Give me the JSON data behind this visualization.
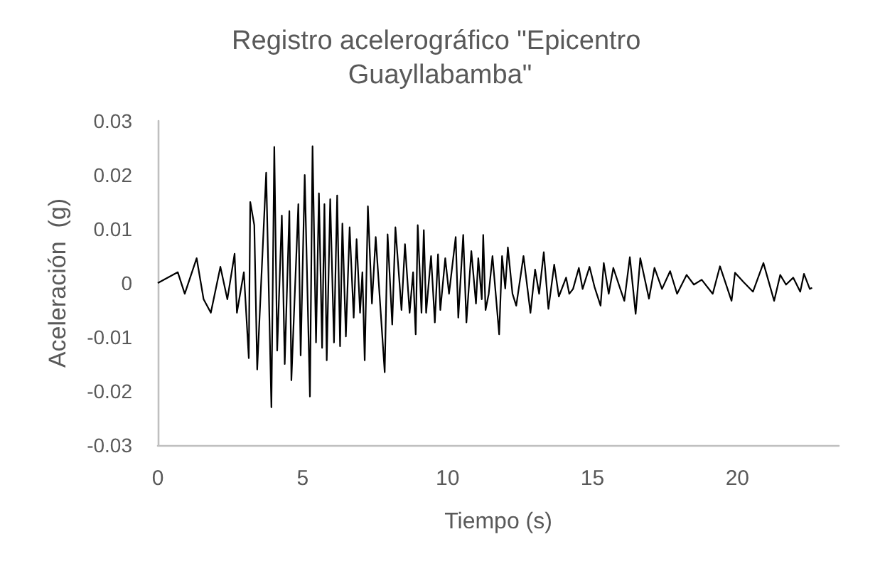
{
  "chart_data": {
    "type": "line",
    "title": "Registro acelerográfico \"Epicentro Guayllabamba\"",
    "xlabel": "Tiempo (s)",
    "ylabel": "Aceleración  (g)",
    "xlim": [
      0,
      23.5
    ],
    "xticks": [
      0,
      5,
      10,
      15,
      20
    ],
    "ylim": [
      -0.03,
      0.03
    ],
    "yticks": [
      -0.03,
      -0.02,
      -0.01,
      0,
      0.01,
      0.02,
      0.03
    ],
    "series": [
      {
        "color": "#000000",
        "x": [
          0,
          0.69,
          0.93,
          1.34,
          1.58,
          1.83,
          2.16,
          2.4,
          2.65,
          2.73,
          2.97,
          3.14,
          3.19,
          3.33,
          3.43,
          3.74,
          3.92,
          4.02,
          4.12,
          4.28,
          4.38,
          4.54,
          4.61,
          4.85,
          4.93,
          5.07,
          5.25,
          5.34,
          5.46,
          5.56,
          5.67,
          5.75,
          5.83,
          5.95,
          6.08,
          6.19,
          6.29,
          6.37,
          6.49,
          6.62,
          6.76,
          6.86,
          6.98,
          7.06,
          7.14,
          7.25,
          7.39,
          7.52,
          7.83,
          7.93,
          8.09,
          8.2,
          8.41,
          8.53,
          8.69,
          8.81,
          8.9,
          8.97,
          9.1,
          9.18,
          9.26,
          9.43,
          9.56,
          9.67,
          9.75,
          9.92,
          10.05,
          10.28,
          10.37,
          10.54,
          10.65,
          10.82,
          10.98,
          11.06,
          11.18,
          11.23,
          11.31,
          11.42,
          11.55,
          11.78,
          11.88,
          11.99,
          12.08,
          12.24,
          12.37,
          12.62,
          12.86,
          13.02,
          13.16,
          13.32,
          13.48,
          13.68,
          13.84,
          14.09,
          14.2,
          14.33,
          14.53,
          14.66,
          14.9,
          15.07,
          15.28,
          15.39,
          15.56,
          15.72,
          15.96,
          16.1,
          16.29,
          16.49,
          16.65,
          16.95,
          17.14,
          17.4,
          17.68,
          17.92,
          18.25,
          18.5,
          18.77,
          19.15,
          19.4,
          19.8,
          19.92,
          20.21,
          20.54,
          20.9,
          21.27,
          21.48,
          21.68,
          21.93,
          22.17,
          22.3,
          22.5,
          22.58
        ],
        "values": [
          0,
          0.002,
          -0.002,
          0.0046,
          -0.003,
          -0.0055,
          0.003,
          -0.003,
          0.0054,
          -0.0055,
          0.002,
          -0.0139,
          0.015,
          0.0107,
          -0.016,
          0.0204,
          -0.023,
          0.0252,
          -0.0125,
          0.0125,
          -0.015,
          0.0133,
          -0.018,
          0.0146,
          -0.0134,
          0.02,
          -0.021,
          0.0253,
          -0.011,
          0.0166,
          -0.012,
          0.0146,
          -0.0143,
          0.0155,
          -0.011,
          0.0162,
          -0.0117,
          0.011,
          -0.0099,
          0.0103,
          -0.0064,
          0.0081,
          -0.0055,
          0.002,
          -0.0143,
          0.0142,
          -0.0038,
          0.0085,
          -0.0165,
          0.009,
          -0.0077,
          0.0103,
          -0.005,
          0.0072,
          -0.0055,
          0.002,
          -0.0095,
          0.0107,
          -0.0055,
          0.0098,
          -0.0055,
          0.005,
          -0.0073,
          0.0053,
          -0.005,
          0.0046,
          -0.002,
          0.0085,
          -0.0064,
          0.0089,
          -0.0073,
          0.0059,
          -0.0038,
          0.0046,
          -0.003,
          0.0089,
          -0.005,
          -0.002,
          0.005,
          -0.0095,
          0.005,
          -0.001,
          0.0066,
          -0.002,
          -0.0042,
          0.005,
          -0.0055,
          0.0025,
          -0.002,
          0.0057,
          -0.0048,
          0.0034,
          -0.0025,
          0.001,
          -0.002,
          -0.0011,
          0.0028,
          -0.0011,
          0.003,
          -0.0007,
          -0.0042,
          0.0037,
          -0.002,
          0.0028,
          -0.0011,
          -0.0033,
          0.0048,
          -0.0057,
          0.0046,
          -0.0029,
          0.0028,
          -0.0011,
          0.0022,
          -0.002,
          0.0015,
          -0.0003,
          0.0006,
          -0.002,
          0.0031,
          -0.0033,
          0.0019,
          0.0002,
          -0.0016,
          0.0037,
          -0.0033,
          0.0015,
          -0.0003,
          0.001,
          -0.0016,
          0.0017,
          -0.0011,
          -0.0009
        ]
      }
    ]
  }
}
